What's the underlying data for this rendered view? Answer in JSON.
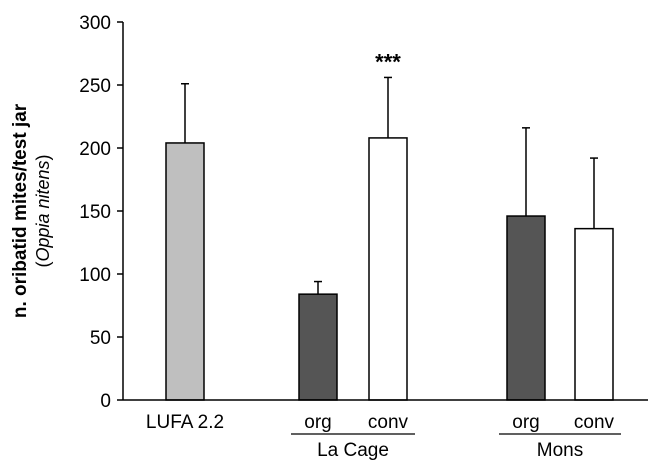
{
  "chart_data": {
    "type": "bar",
    "ylabel": "n. oribatid mites/test jar",
    "ylabel_sub_open": "(",
    "ylabel_sub_species": "Oppia nitens",
    "ylabel_sub_close": ")",
    "ylim": [
      0,
      300
    ],
    "yticks": [
      0,
      50,
      100,
      150,
      200,
      250,
      300
    ],
    "grid": false,
    "categories": [
      "LUFA 2.2",
      "org",
      "conv",
      "org",
      "conv"
    ],
    "groups": [
      {
        "label": "La Cage",
        "members": [
          1,
          2
        ]
      },
      {
        "label": "Mons",
        "members": [
          3,
          4
        ]
      }
    ],
    "values": [
      204,
      84,
      208,
      146,
      136
    ],
    "error_upper": [
      251,
      94,
      256,
      216,
      192
    ],
    "fills": [
      "#bfbfbf",
      "#555555",
      "#ffffff",
      "#555555",
      "#ffffff"
    ],
    "annotations": [
      {
        "category_index": 2,
        "text": "***"
      }
    ]
  }
}
